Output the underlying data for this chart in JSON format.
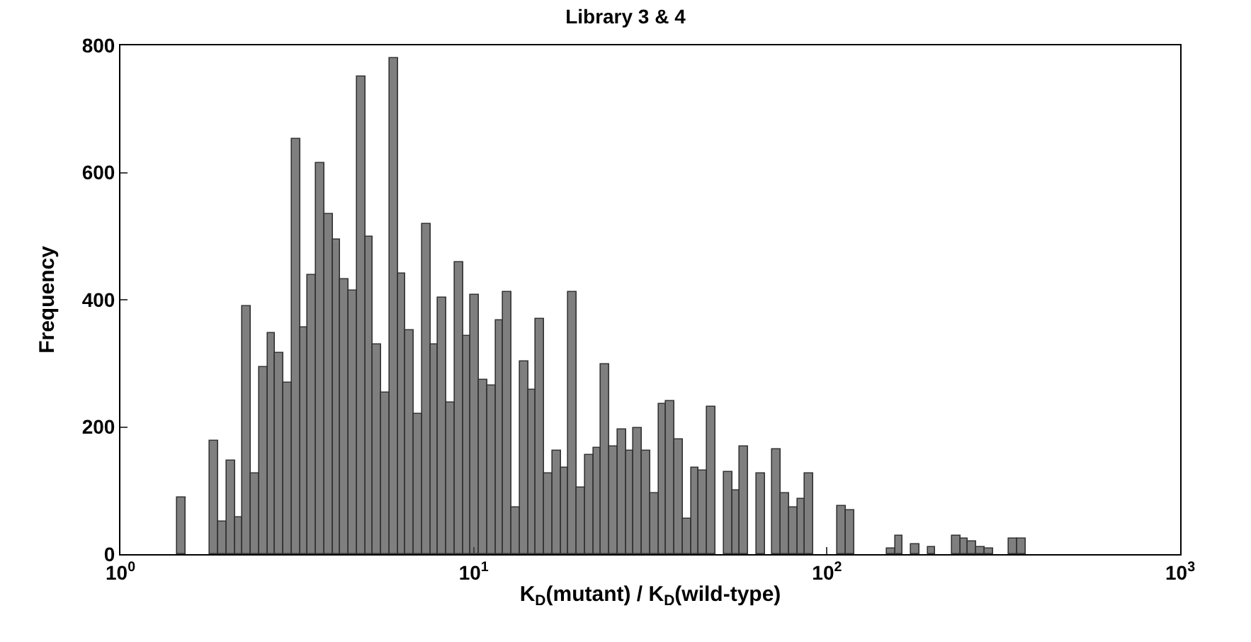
{
  "chart_data": {
    "type": "histogram",
    "title": "Library 3 & 4",
    "xlabel": "K$_{D}$(mutant) / K$_{D}$(wild-type)",
    "ylabel": "Frequency",
    "bins": [
      1.45,
      1.53,
      1.613,
      1.701,
      1.794,
      1.892,
      1.995,
      2.104,
      2.219,
      2.34,
      2.468,
      2.602,
      2.744,
      2.894,
      3.052,
      3.219,
      3.394,
      3.58,
      3.775,
      3.981,
      4.198,
      4.427,
      4.669,
      4.924,
      5.192,
      5.475,
      5.774,
      6.09,
      6.423,
      6.772,
      7.143,
      7.532,
      7.943,
      8.376,
      8.833,
      9.316,
      9.825,
      10.36,
      10.92,
      11.52,
      12.15,
      12.82,
      13.51,
      14.25,
      15.03,
      15.85,
      16.71,
      17.62,
      18.59,
      19.6,
      20.67,
      21.79,
      22.99,
      24.24,
      25.58,
      26.96,
      28.43,
      29.99,
      31.62,
      33.34,
      35.16,
      37.09,
      39.11,
      41.24,
      43.48,
      45.87,
      48.37,
      51.04,
      53.79,
      56.73,
      59.84,
      63.09,
      66.52,
      70.15,
      74.0,
      78.04,
      82.28,
      86.75,
      91.52,
      96.51,
      101.8,
      107.3,
      113.2,
      119.4,
      125.9,
      132.7,
      140.0,
      147.7,
      155.7,
      164.2,
      173.1,
      182.6,
      192.6,
      203.1,
      214.1,
      225.9,
      238.2,
      251.2,
      264.8,
      279.3,
      294.7,
      310.7,
      327.6,
      345.4,
      364.3
    ],
    "values": [
      90,
      0,
      0,
      0,
      179,
      51,
      148,
      57,
      391,
      127,
      295,
      348,
      317,
      270,
      653,
      357,
      438,
      616,
      535,
      494,
      432,
      415,
      752,
      500,
      329,
      254,
      780,
      442,
      353,
      221,
      520,
      330,
      403,
      239,
      459,
      343,
      408,
      275,
      266,
      367,
      413,
      74,
      302,
      258,
      370,
      128,
      163,
      136,
      413,
      104,
      155,
      167,
      299,
      169,
      196,
      163,
      199,
      163,
      96,
      237,
      241,
      181,
      56,
      135,
      132,
      231,
      0,
      129,
      100,
      169,
      0,
      128,
      0,
      164,
      96,
      73,
      87,
      127,
      0,
      0,
      0,
      76,
      70,
      0,
      0,
      0,
      0,
      10,
      30,
      0,
      15,
      0,
      12,
      0,
      0,
      30,
      25,
      20,
      12,
      8,
      0,
      0,
      25,
      25
    ],
    "color": "#7f7f7f",
    "log": "x",
    "xlim": [
      1,
      1000
    ],
    "xticks": [
      {
        "value": 1,
        "label": "10$^{0}$"
      },
      {
        "value": 10,
        "label": "10$^{1}$"
      },
      {
        "value": 100,
        "label": "10$^{2}$"
      },
      {
        "value": 1000,
        "label": "10$^{3}$"
      }
    ],
    "ylim": [
      0,
      800
    ],
    "yticks": [
      0,
      200,
      400,
      600,
      800
    ]
  }
}
